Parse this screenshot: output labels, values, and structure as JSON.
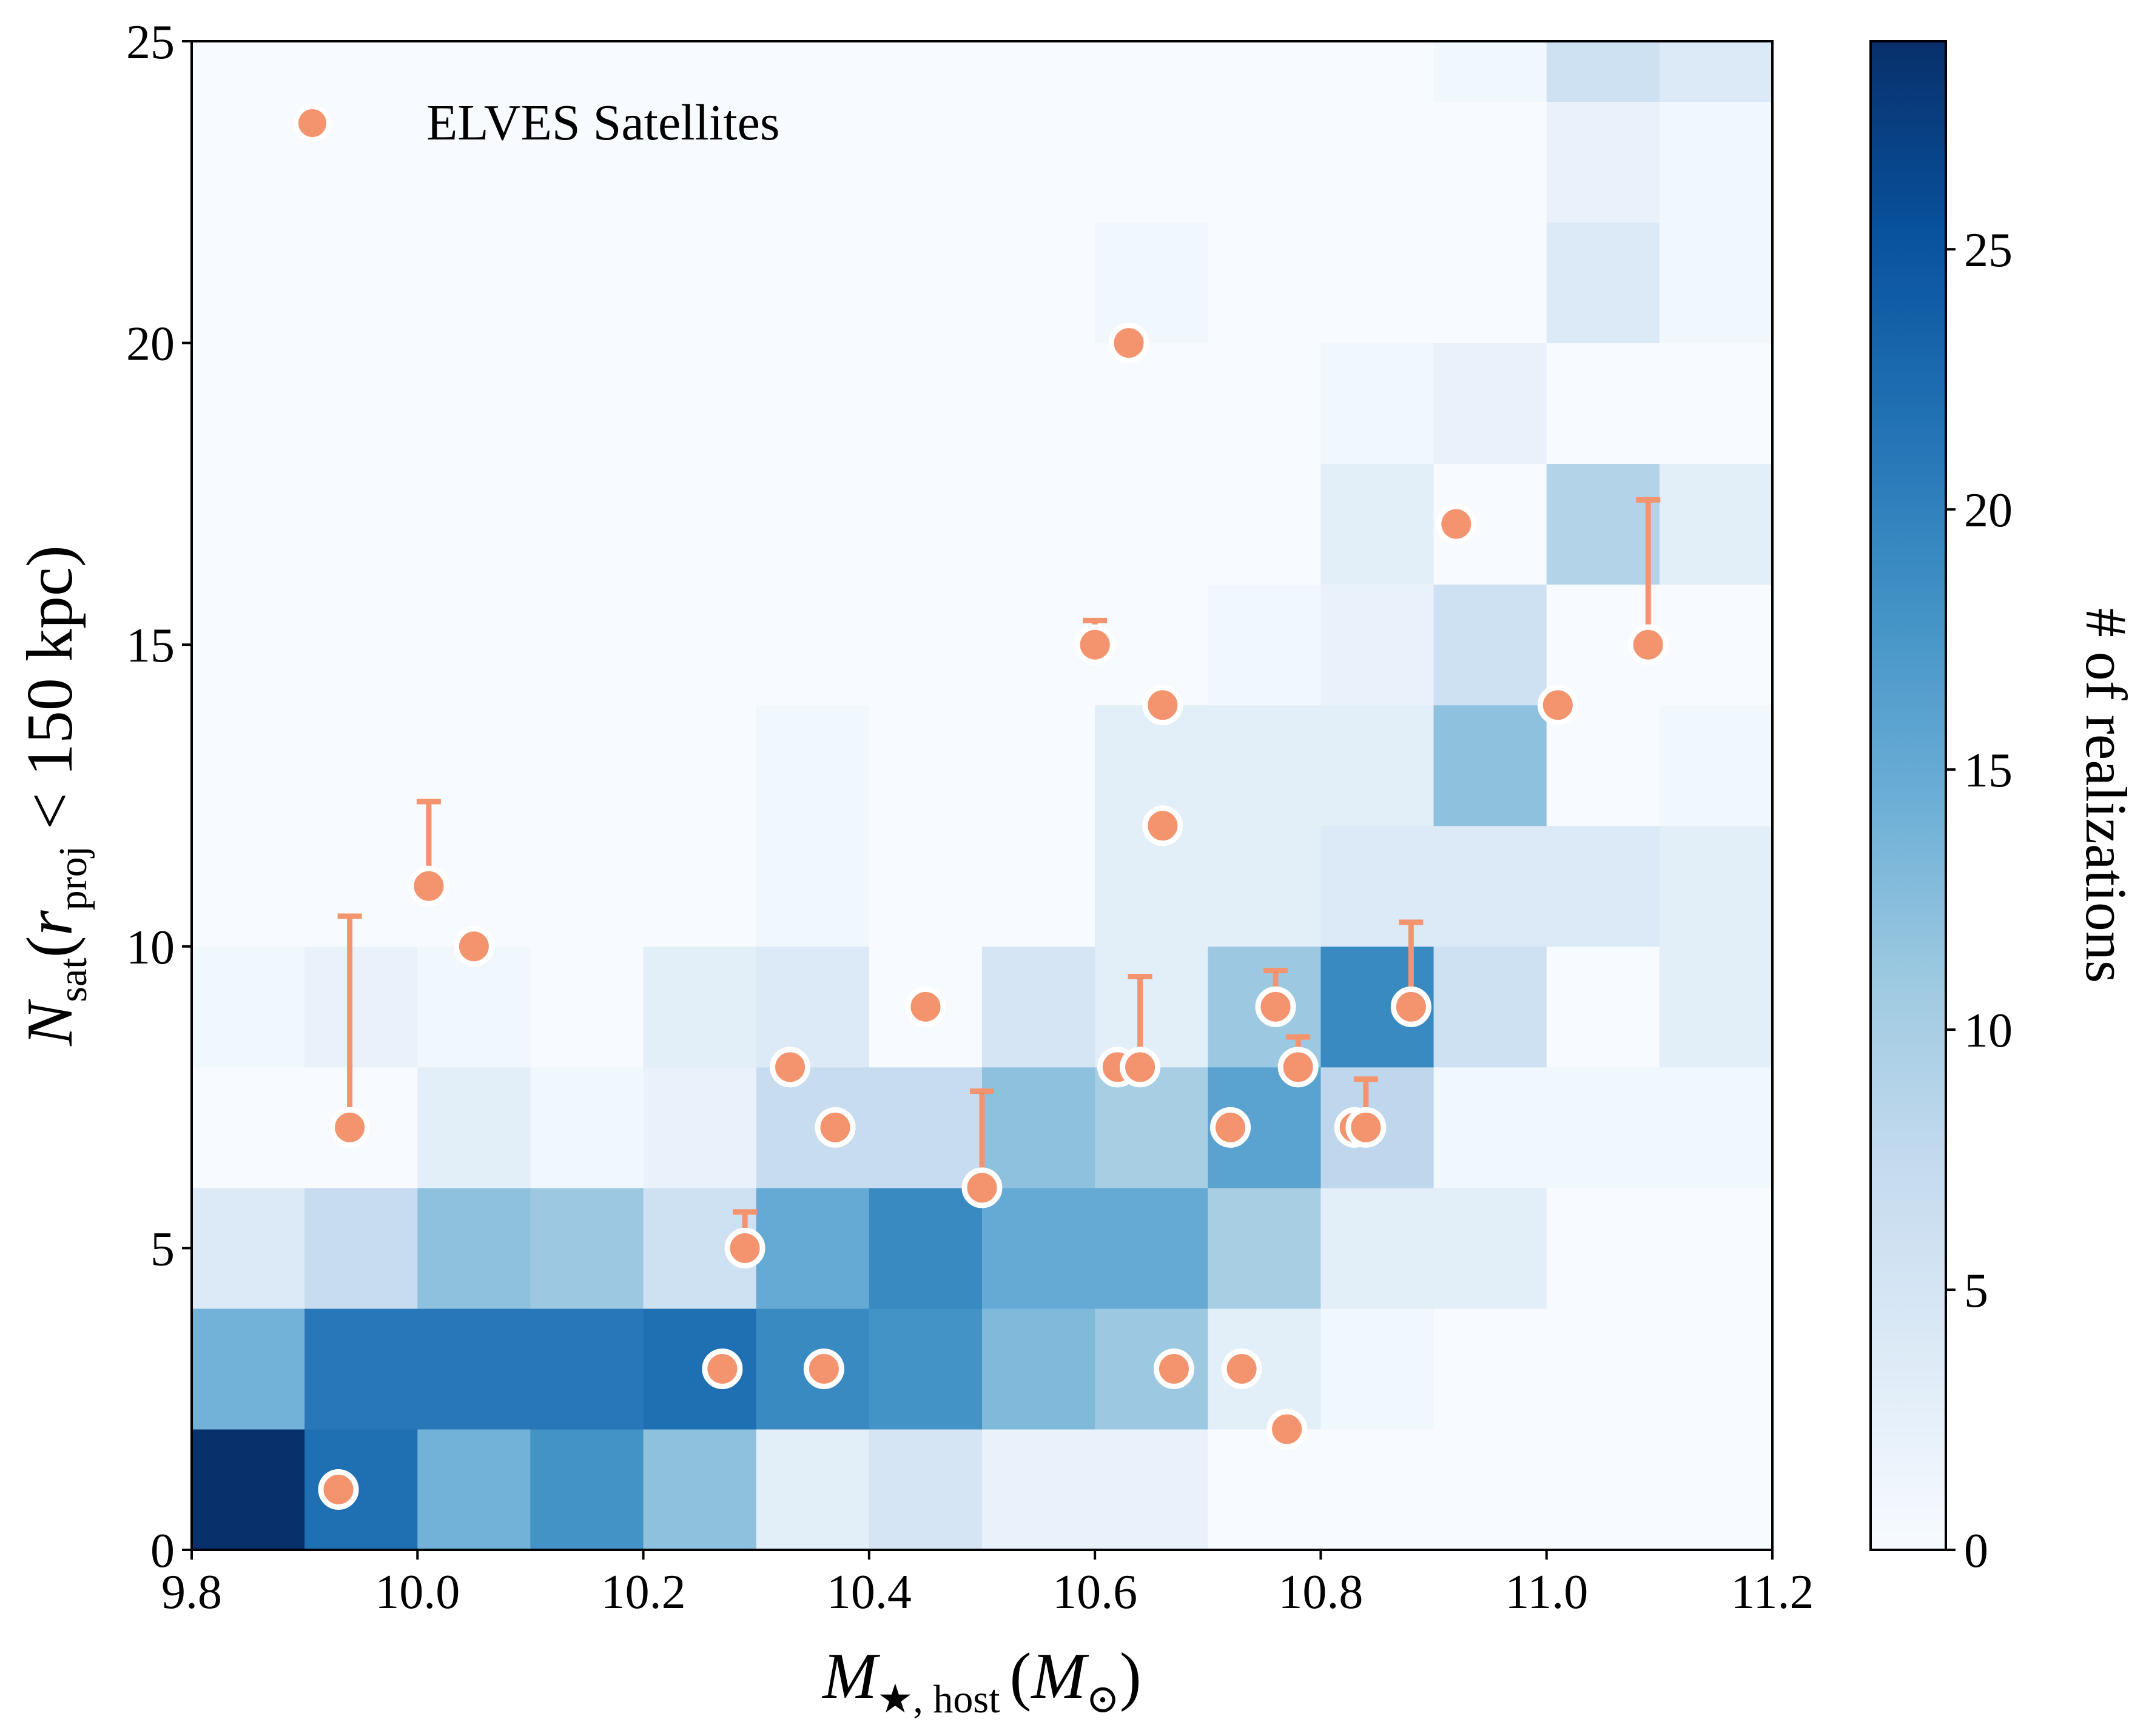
{
  "chart_data": {
    "type": "heatmap",
    "xlabel": {
      "main": "M",
      "sub": "★, host",
      "unit_open": "(M",
      "unit_sub": "⊙",
      "unit_close": ")"
    },
    "ylabel": {
      "main": "N",
      "sub": "sat",
      "open": "(r",
      "sub2": "proj",
      "rest": " < 150 kpc)"
    },
    "x_edges": [
      9.8,
      9.9,
      10.0,
      10.1,
      10.2,
      10.3,
      10.4,
      10.5,
      10.6,
      10.7,
      10.8,
      10.9,
      11.0,
      11.1,
      11.2
    ],
    "y_edges": [
      0,
      2,
      4,
      6,
      8,
      10,
      12,
      14,
      16,
      18,
      20,
      22,
      24,
      25
    ],
    "counts": [
      [
        29,
        22,
        14,
        18,
        12,
        3,
        5,
        2,
        2,
        0,
        0,
        0,
        0,
        0
      ],
      [
        14,
        21,
        21,
        21,
        22,
        19,
        18,
        13,
        11,
        3,
        1,
        0,
        0,
        0
      ],
      [
        4,
        7,
        12,
        11,
        6,
        15,
        19,
        15,
        15,
        10,
        3,
        3,
        0,
        0
      ],
      [
        0,
        0,
        3,
        1,
        2,
        7,
        7,
        12,
        10,
        16,
        8,
        1,
        1,
        1
      ],
      [
        1,
        2,
        1,
        0,
        3,
        4,
        0,
        5,
        3,
        11,
        19,
        6,
        0,
        3
      ],
      [
        0,
        0,
        0,
        0,
        0,
        1,
        0,
        0,
        3,
        3,
        4,
        4,
        4,
        3
      ],
      [
        0,
        0,
        0,
        0,
        0,
        1,
        0,
        0,
        3,
        3,
        3,
        12,
        0,
        1
      ],
      [
        0,
        0,
        0,
        0,
        0,
        0,
        0,
        0,
        0,
        1,
        2,
        6,
        0,
        0
      ],
      [
        0,
        0,
        0,
        0,
        0,
        0,
        0,
        0,
        0,
        0,
        3,
        0,
        9,
        3
      ],
      [
        0,
        0,
        0,
        0,
        0,
        0,
        0,
        0,
        0,
        0,
        1,
        2,
        0,
        0
      ],
      [
        0,
        0,
        0,
        0,
        0,
        0,
        0,
        0,
        1,
        0,
        0,
        0,
        4,
        1
      ],
      [
        0,
        0,
        0,
        0,
        0,
        0,
        0,
        0,
        0,
        0,
        0,
        0,
        2,
        1
      ],
      [
        0,
        0,
        0,
        0,
        0,
        0,
        0,
        0,
        0,
        0,
        0,
        1,
        6,
        4
      ]
    ],
    "xlim": [
      9.8,
      11.2
    ],
    "ylim": [
      0,
      25
    ],
    "x_ticks": [
      "9.8",
      "10.0",
      "10.2",
      "10.4",
      "10.6",
      "10.8",
      "11.0",
      "11.2"
    ],
    "x_tick_values": [
      9.8,
      10.0,
      10.2,
      10.4,
      10.6,
      10.8,
      11.0,
      11.2
    ],
    "y_ticks": [
      "0",
      "5",
      "10",
      "15",
      "20",
      "25"
    ],
    "y_tick_values": [
      0,
      5,
      10,
      15,
      20,
      25
    ],
    "colorbar": {
      "label": "# of realizations",
      "min": 0,
      "max": 29,
      "ticks": [
        "0",
        "5",
        "10",
        "15",
        "20",
        "25"
      ],
      "tick_values": [
        0,
        5,
        10,
        15,
        20,
        25
      ],
      "colormap": "Blues"
    },
    "legend": {
      "label": "ELVES Satellites",
      "position": "top-left"
    },
    "marker_color": "#f4946f",
    "points": [
      {
        "x": 9.93,
        "y": 1
      },
      {
        "x": 9.94,
        "y": 7,
        "upper": 10.5
      },
      {
        "x": 10.01,
        "y": 11,
        "upper": 12.4
      },
      {
        "x": 10.05,
        "y": 10
      },
      {
        "x": 10.27,
        "y": 3
      },
      {
        "x": 10.29,
        "y": 5,
        "upper": 5.6
      },
      {
        "x": 10.33,
        "y": 8
      },
      {
        "x": 10.36,
        "y": 3
      },
      {
        "x": 10.37,
        "y": 7
      },
      {
        "x": 10.45,
        "y": 9
      },
      {
        "x": 10.5,
        "y": 6,
        "upper": 7.6
      },
      {
        "x": 10.6,
        "y": 15,
        "upper": 15.4
      },
      {
        "x": 10.62,
        "y": 8
      },
      {
        "x": 10.63,
        "y": 20
      },
      {
        "x": 10.64,
        "y": 8,
        "upper": 9.5
      },
      {
        "x": 10.66,
        "y": 14
      },
      {
        "x": 10.66,
        "y": 12
      },
      {
        "x": 10.67,
        "y": 3
      },
      {
        "x": 10.72,
        "y": 7
      },
      {
        "x": 10.73,
        "y": 3
      },
      {
        "x": 10.76,
        "y": 9,
        "upper": 9.6
      },
      {
        "x": 10.77,
        "y": 2
      },
      {
        "x": 10.78,
        "y": 8,
        "upper": 8.5
      },
      {
        "x": 10.83,
        "y": 7
      },
      {
        "x": 10.84,
        "y": 7,
        "upper": 7.8
      },
      {
        "x": 10.88,
        "y": 9,
        "upper": 10.4
      },
      {
        "x": 10.92,
        "y": 17
      },
      {
        "x": 11.01,
        "y": 14
      },
      {
        "x": 11.09,
        "y": 15,
        "upper": 17.4
      }
    ]
  }
}
